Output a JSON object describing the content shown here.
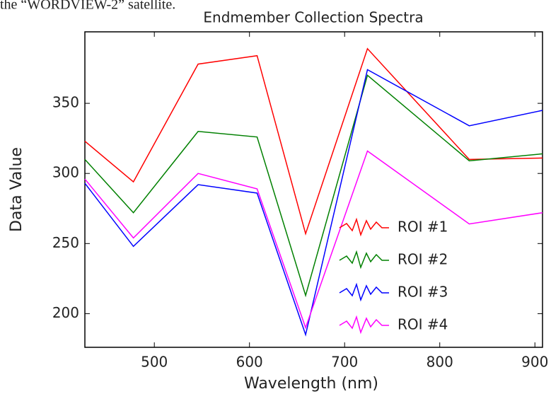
{
  "caption": "the “WORDVIEW-2” satellite.",
  "chart_data": {
    "type": "line",
    "title": "Endmember Collection Spectra",
    "x_label": "Wavelength (nm)",
    "y_label": "Data Value",
    "x": [
      427,
      478,
      546,
      608,
      659,
      724,
      831,
      908
    ],
    "series": [
      {
        "name": "ROI #1",
        "color": "#ff0000",
        "values": [
          323,
          294,
          378,
          384,
          257,
          389,
          310,
          311
        ]
      },
      {
        "name": "ROI #2",
        "color": "#008000",
        "values": [
          310,
          272,
          330,
          326,
          213,
          370,
          309,
          314
        ]
      },
      {
        "name": "ROI #3",
        "color": "#0000ff",
        "values": [
          293,
          248,
          292,
          286,
          185,
          374,
          334,
          345
        ]
      },
      {
        "name": "ROI #4",
        "color": "#ff00ff",
        "values": [
          296,
          254,
          300,
          289,
          190,
          316,
          264,
          272
        ]
      }
    ],
    "xlim": [
      427,
      908
    ],
    "xticks": [
      500,
      600,
      700,
      800,
      900
    ],
    "ylim": [
      176,
      401
    ],
    "yticks": [
      200,
      250,
      300,
      350
    ]
  }
}
